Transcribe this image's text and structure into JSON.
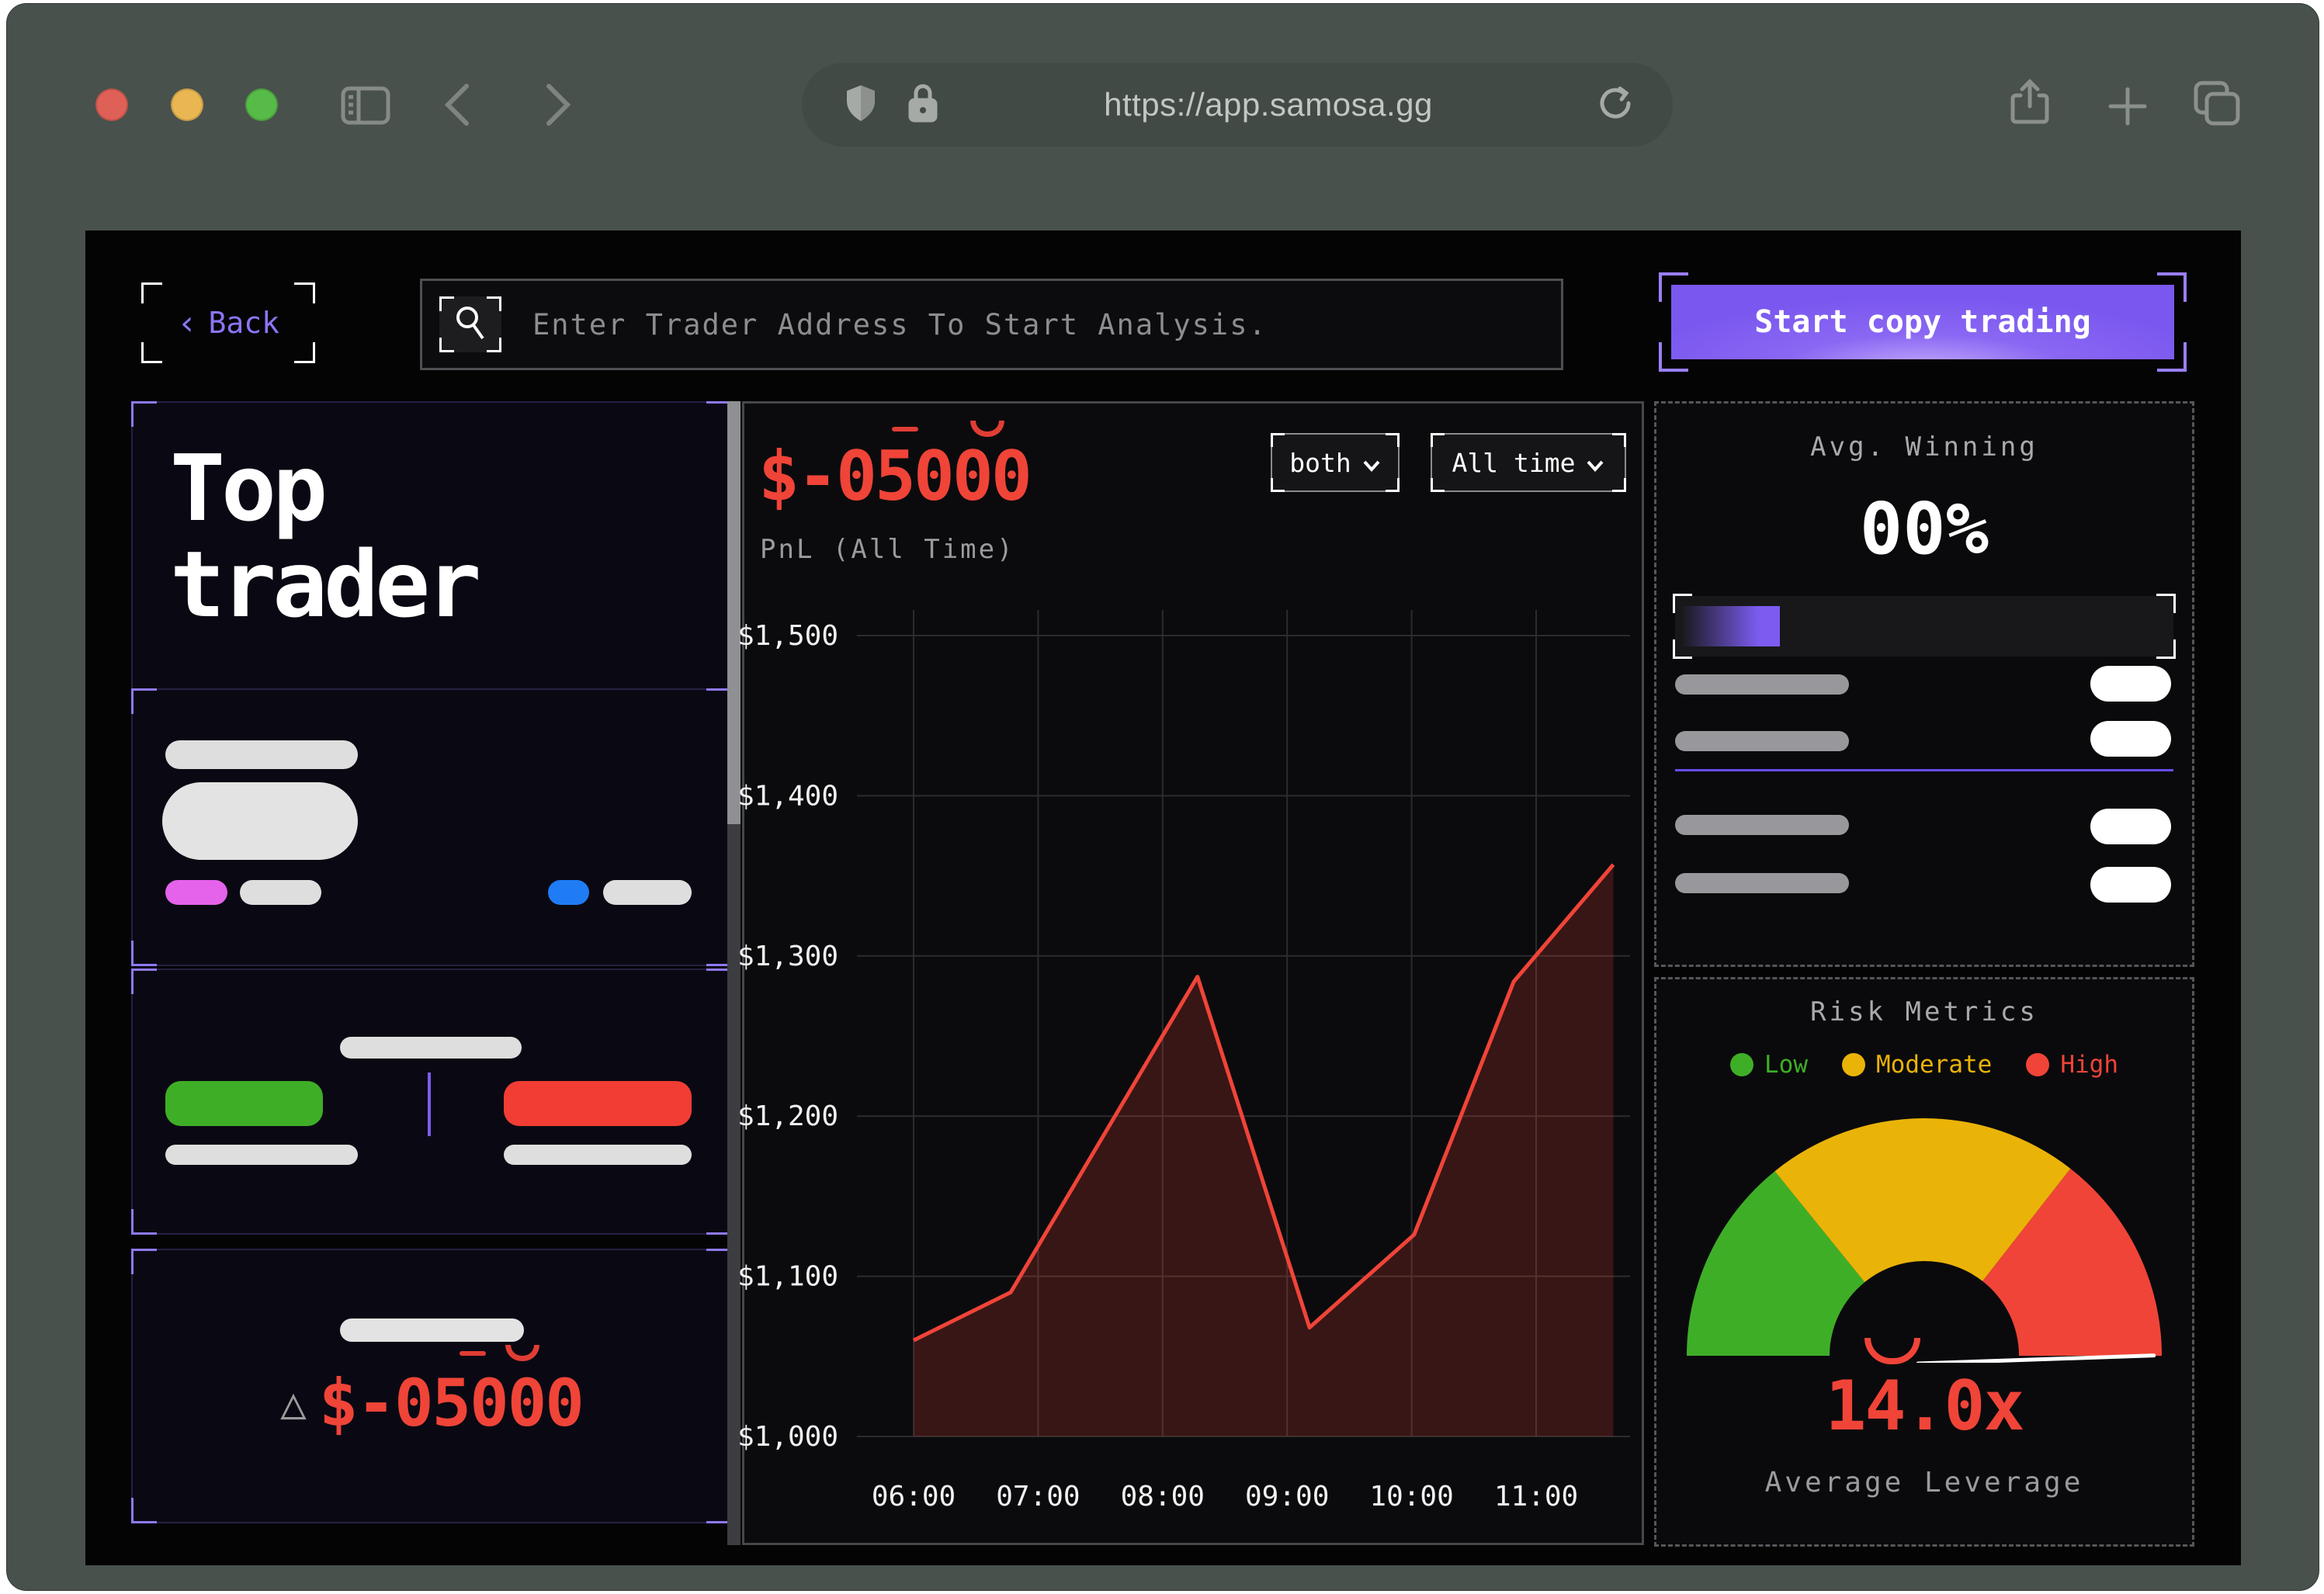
{
  "browser": {
    "url": "https://app.samosa.gg"
  },
  "app": {
    "topbar": {
      "back_chevron": "‹",
      "back_label": "Back",
      "search_placeholder": "Enter Trader Address To Start Analysis.",
      "cta_label": "Start copy trading"
    },
    "trader_panel": {
      "title_line1": "Top",
      "title_line2": "trader",
      "pnl_delta_symbol": "△",
      "pnl_value": "$-05000"
    },
    "pnl_panel": {
      "value": "$-05000",
      "label": "PnL (All Time)",
      "filters": [
        {
          "label": "both"
        },
        {
          "label": "All time"
        }
      ]
    },
    "avg_winning_panel": {
      "title": "Avg. Winning",
      "value": "00%",
      "progress_pct": 21
    },
    "risk_panel": {
      "title": "Risk Metrics",
      "legend": [
        {
          "label": "Low",
          "color": "#3fae27"
        },
        {
          "label": "Moderate",
          "color": "#eab308"
        },
        {
          "label": "High",
          "color": "#f04438"
        }
      ],
      "gauge": {
        "segments": [
          {
            "name": "low",
            "color": "#3fae27",
            "deg": 51
          },
          {
            "name": "moderate",
            "color": "#eab308",
            "deg": 77
          },
          {
            "name": "high",
            "color": "#f04438",
            "deg": 52
          }
        ],
        "needle_deg": -2
      },
      "value": "14.0x",
      "caption": "Average Leverage"
    }
  },
  "chart_data": {
    "type": "area",
    "title": "PnL (All Time)",
    "x_ticks": [
      "06:00",
      "07:00",
      "08:00",
      "09:00",
      "10:00",
      "11:00"
    ],
    "x_tick_hours": [
      6,
      7,
      8,
      9,
      10,
      11
    ],
    "y_ticks": [
      "$1,000",
      "$1,100",
      "$1,200",
      "$1,300",
      "$1,400",
      "$1,500"
    ],
    "y_tick_values": [
      1000,
      1100,
      1200,
      1300,
      1400,
      1500
    ],
    "y_range": [
      1000,
      1500
    ],
    "grid": true,
    "legend_shown": false,
    "series": [
      {
        "name": "PnL",
        "color": "#f04438",
        "fill": "rgba(240,68,56,0.2)",
        "points": [
          [
            6.0,
            1060
          ],
          [
            6.78,
            1090
          ],
          [
            8.28,
            1287
          ],
          [
            9.18,
            1068
          ],
          [
            10.02,
            1126
          ],
          [
            10.82,
            1284
          ],
          [
            11.62,
            1357
          ]
        ]
      }
    ]
  },
  "colors": {
    "accent_purple": "#7c5cf0",
    "negative_red": "#f04438",
    "positive_green": "#3fae27",
    "warning_yellow": "#eab308",
    "chrome": "#48514c"
  }
}
